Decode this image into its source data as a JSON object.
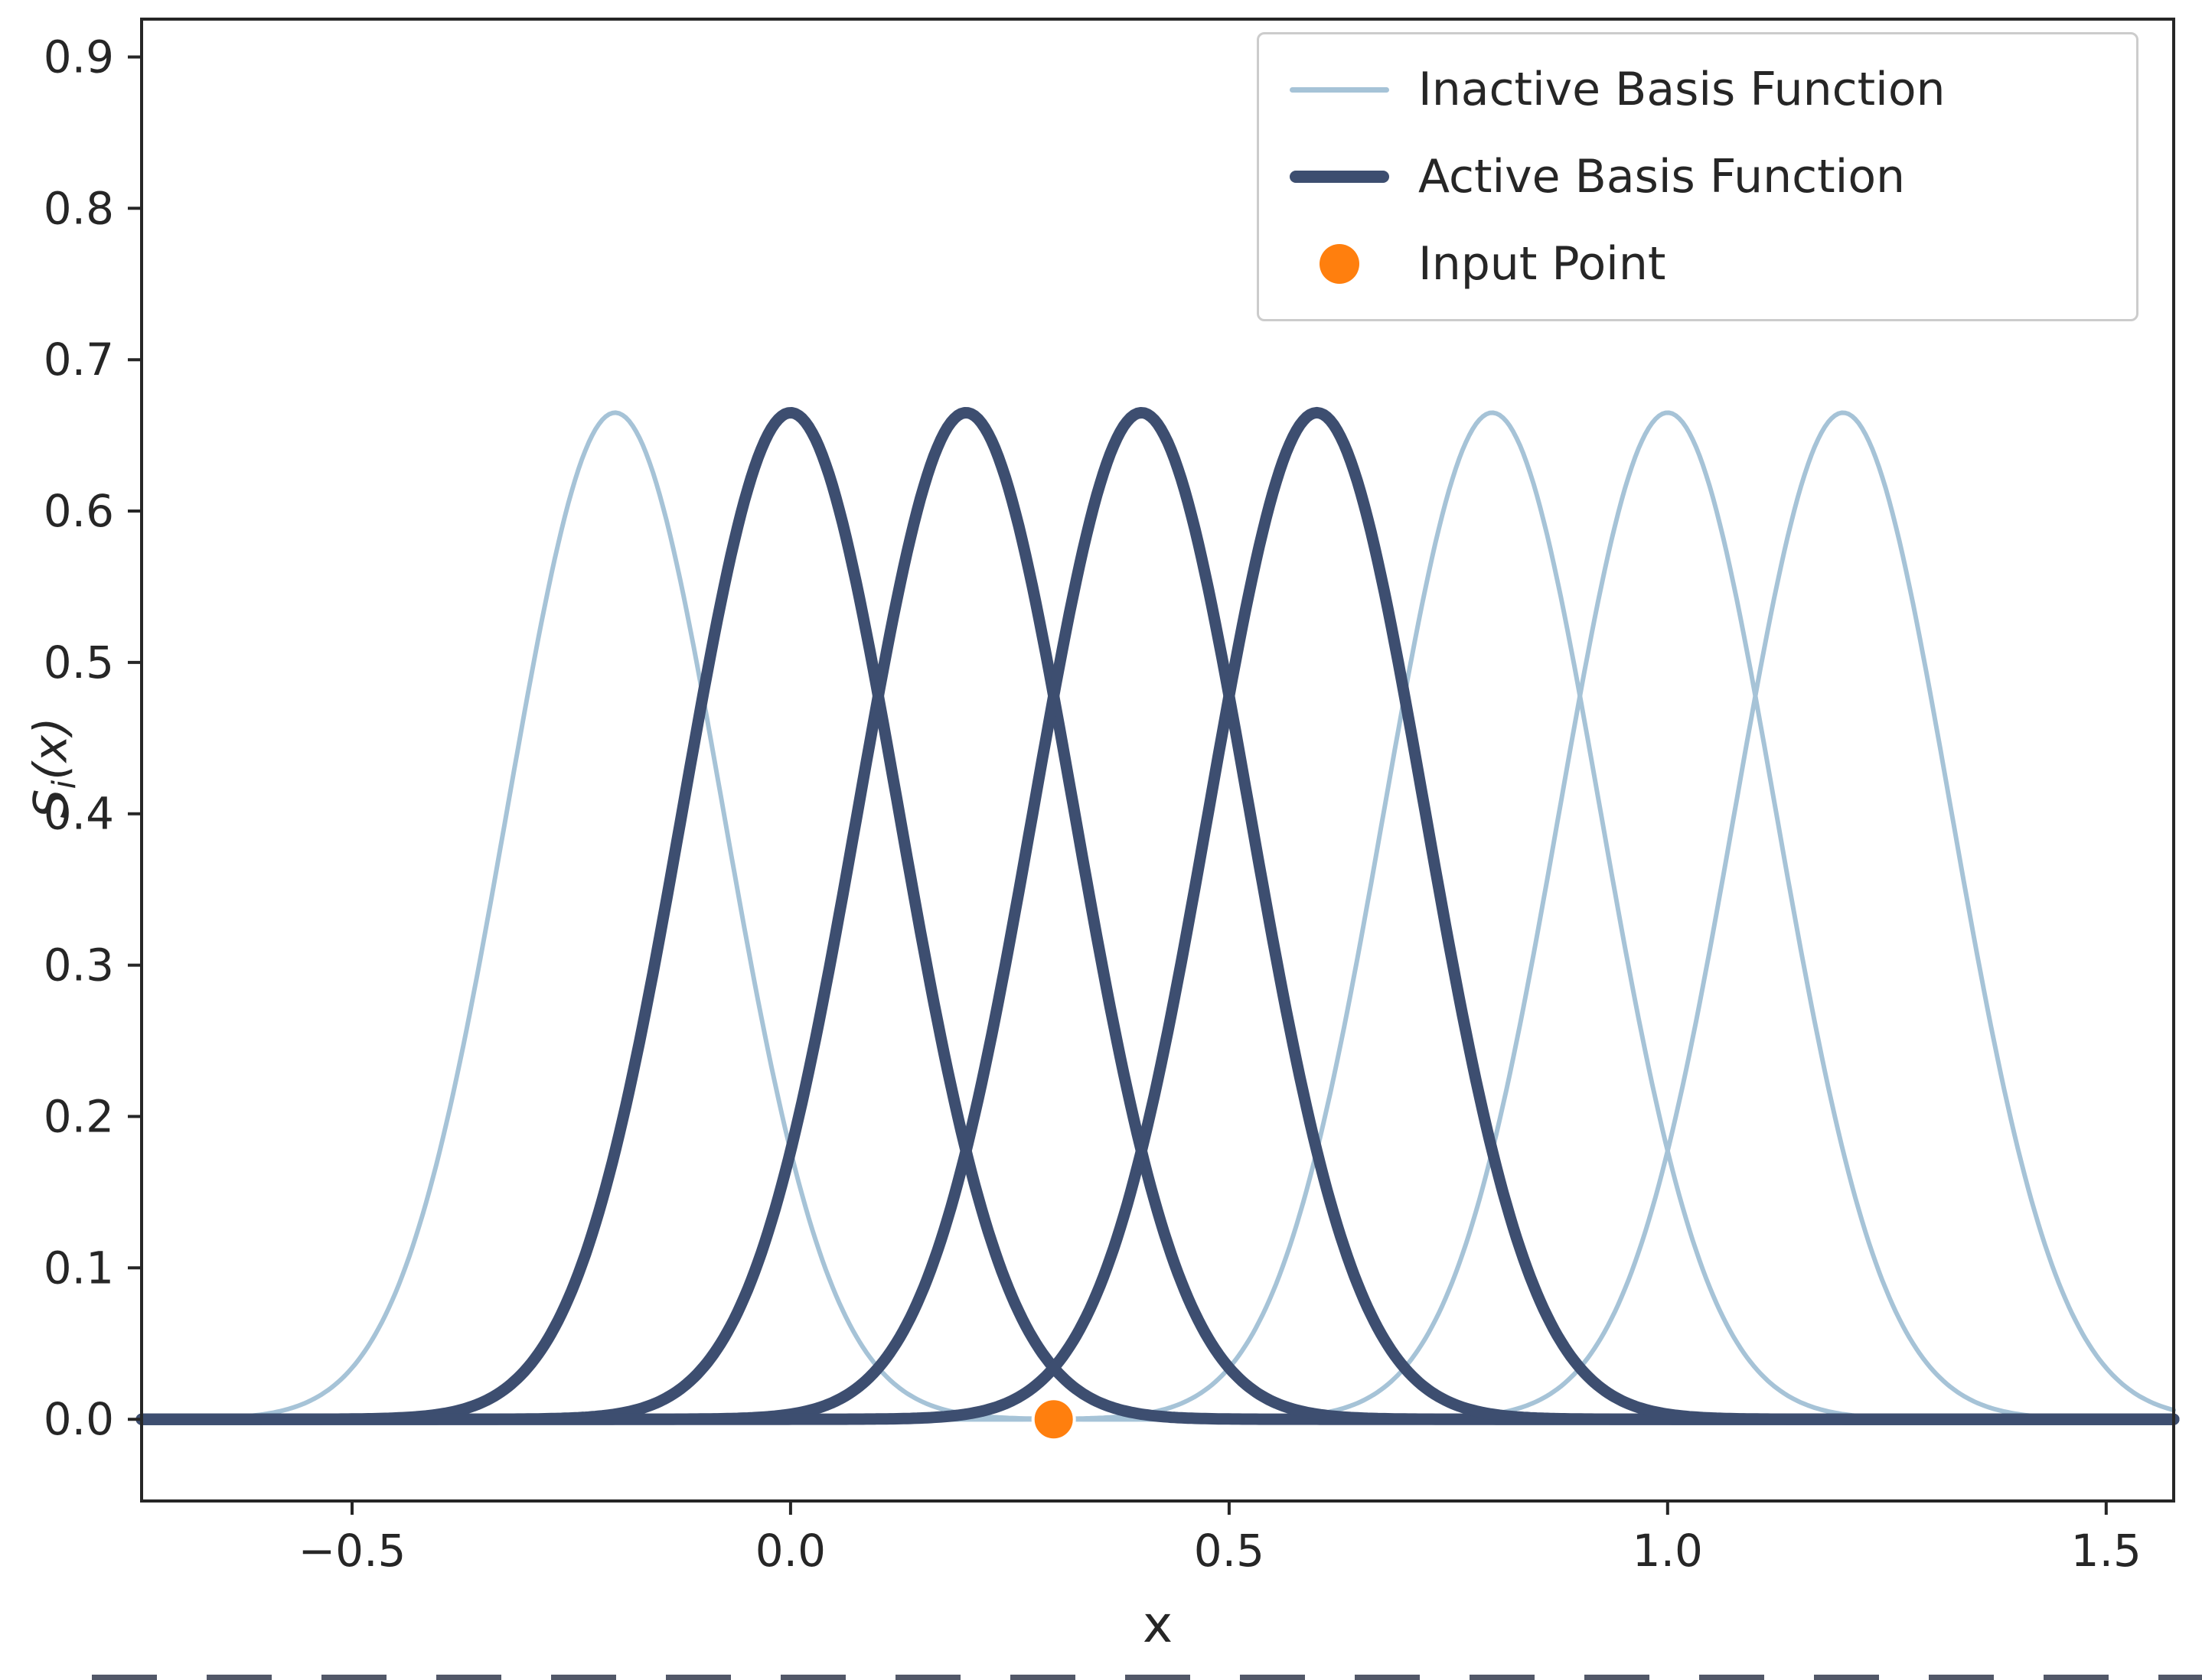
{
  "chart_data": {
    "type": "line",
    "title": "",
    "xlabel": "x",
    "ylabel": "Sᵢ(x)",
    "ylabel_main": "S",
    "ylabel_sub": "i",
    "ylabel_rest": "(x)",
    "xlim": [
      -0.74,
      1.577
    ],
    "ylim": [
      -0.054,
      0.925
    ],
    "grid": false,
    "legend_position": "upper right",
    "axis_color": "#262626",
    "xticks": {
      "values": [
        -0.5,
        0.0,
        0.5,
        1.0,
        1.5
      ],
      "labels": [
        "−0.5",
        "0.0",
        "0.5",
        "1.0",
        "1.5"
      ]
    },
    "yticks": {
      "values": [
        0.0,
        0.1,
        0.2,
        0.3,
        0.4,
        0.5,
        0.6,
        0.7,
        0.8,
        0.9
      ],
      "labels": [
        "0.0",
        "0.1",
        "0.2",
        "0.3",
        "0.4",
        "0.5",
        "0.6",
        "0.7",
        "0.8",
        "0.9"
      ]
    },
    "series": [
      {
        "name": "Inactive Basis Function",
        "role": "inactive",
        "curve": "gaussian",
        "centers": [
          -0.2,
          0.8,
          1.0,
          1.2
        ],
        "sigma": 0.123,
        "amplitude": 0.665,
        "color": "#a6c3d7",
        "linewidth": 6
      },
      {
        "name": "Active Basis Function",
        "role": "active",
        "curve": "gaussian",
        "centers": [
          0.0,
          0.2,
          0.4,
          0.6
        ],
        "sigma": 0.123,
        "amplitude": 0.665,
        "color": "#3d4e70",
        "linewidth": 15
      }
    ],
    "input_point": {
      "x": 0.3,
      "y": 0.0,
      "color": "#ff7f0e",
      "radius": 27,
      "edge_color": "#ffffff"
    },
    "legend": {
      "entries": [
        {
          "label": "Inactive Basis Function",
          "swatch": "line-thin"
        },
        {
          "label": "Active Basis Function",
          "swatch": "line-thick"
        },
        {
          "label": "Input Point",
          "swatch": "dot"
        }
      ]
    }
  }
}
